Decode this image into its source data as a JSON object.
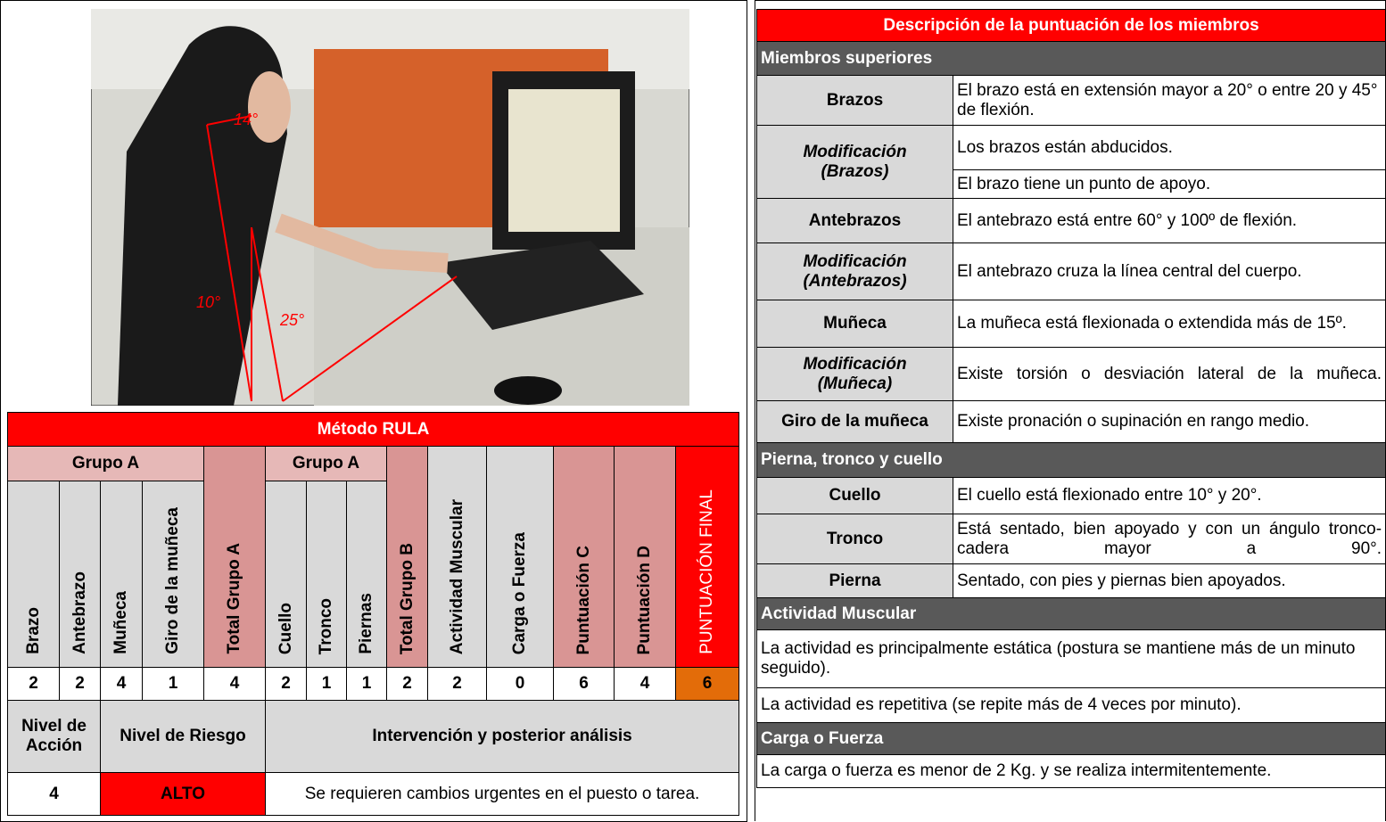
{
  "photo": {
    "annotations": [
      "14°",
      "10°",
      "25°"
    ]
  },
  "rula": {
    "title": "Método RULA",
    "group_a": "Grupo A",
    "group_b": "Grupo A",
    "columns": [
      "Brazo",
      "Antebrazo",
      "Muñeca",
      "Giro de la muñeca",
      "Total Grupo A",
      "Cuello",
      "Tronco",
      "Piernas",
      "Total Grupo B",
      "Actividad Muscular",
      "Carga o Fuerza",
      "Puntuación C",
      "Puntuación D",
      "PUNTUACIÓN FINAL"
    ],
    "scores": [
      2,
      2,
      4,
      1,
      4,
      2,
      1,
      1,
      2,
      2,
      0,
      6,
      4,
      6
    ],
    "result_headers": [
      "Nivel de Acción",
      "Nivel de Riesgo",
      "Intervención y posterior análisis"
    ],
    "result_values": [
      4,
      "ALTO",
      "Se requieren cambios urgentes en el puesto o tarea."
    ]
  },
  "description": {
    "title": "Descripción de la puntuación de los miembros",
    "sections": [
      {
        "title": "Miembros superiores",
        "rows": [
          {
            "label": "Brazos",
            "items": [
              "El brazo está en extensión mayor a 20° o entre 20 y 45° de flexión."
            ]
          },
          {
            "label": "Modificación (Brazos)",
            "items": [
              "Los brazos están abducidos.",
              "El brazo tiene un punto de apoyo."
            ]
          },
          {
            "label": "Antebrazos",
            "items": [
              "El antebrazo está entre 60° y 100º de flexión."
            ]
          },
          {
            "label": "Modificación (Antebrazos)",
            "items": [
              "El antebrazo cruza la línea central del cuerpo."
            ]
          },
          {
            "label": "Muñeca",
            "items": [
              "La muñeca está flexionada o extendida más de 15º."
            ]
          },
          {
            "label": "Modificación (Muñeca)",
            "items": [
              "Existe torsión o desviación lateral de la muñeca."
            ]
          },
          {
            "label": "Giro de la muñeca",
            "items": [
              "Existe pronación o supinación en rango medio."
            ]
          }
        ]
      },
      {
        "title": "Pierna, tronco y cuello",
        "rows": [
          {
            "label": "Cuello",
            "items": [
              "El cuello está flexionado entre 10° y 20°."
            ]
          },
          {
            "label": "Tronco",
            "items": [
              "Está sentado, bien apoyado y con un ángulo tronco-cadera mayor a 90°."
            ]
          },
          {
            "label": "Pierna",
            "items": [
              "Sentado, con pies y piernas bien apoyados."
            ]
          }
        ]
      },
      {
        "title": "Actividad Muscular",
        "items": [
          "La actividad es principalmente estática (postura se mantiene más de un minuto seguido).",
          "La actividad es repetitiva (se repite más de 4 veces por minuto)."
        ]
      },
      {
        "title": "Carga o Fuerza",
        "items": [
          "La carga o fuerza es menor de 2 Kg. y se realiza intermitentemente."
        ]
      }
    ]
  }
}
